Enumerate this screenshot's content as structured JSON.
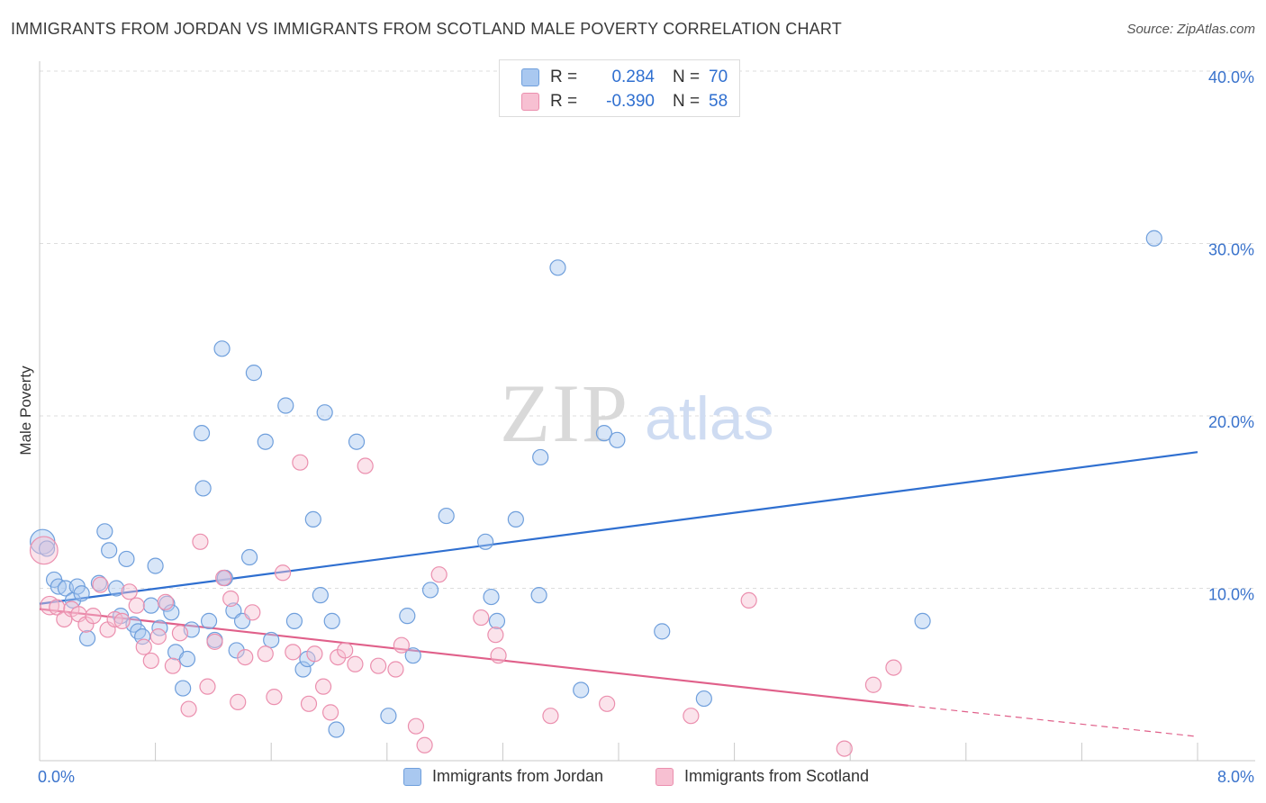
{
  "title": "IMMIGRANTS FROM JORDAN VS IMMIGRANTS FROM SCOTLAND MALE POVERTY CORRELATION CHART",
  "source": "Source: ZipAtlas.com",
  "watermark": {
    "zip": "ZIP",
    "atlas": "atlas"
  },
  "colors": {
    "jordan_fill": "#a9c8f0",
    "jordan_stroke": "#6f9fdc",
    "jordan_line": "#2f6fd0",
    "scotland_fill": "#f7c0d2",
    "scotland_stroke": "#eb8fae",
    "scotland_line": "#e0608a",
    "tick_text": "#3a73cc"
  },
  "stats": {
    "jordan": {
      "r_label": "R =",
      "r_value": "0.284",
      "n_label": "N =",
      "n_value": "70"
    },
    "scotland": {
      "r_label": "R =",
      "r_value": "-0.390",
      "n_label": "N =",
      "n_value": "58"
    }
  },
  "legend": {
    "jordan": "Immigrants from Jordan",
    "scotland": "Immigrants from Scotland"
  },
  "chart_data": {
    "type": "scatter",
    "title": "IMMIGRANTS FROM JORDAN VS IMMIGRANTS FROM SCOTLAND MALE POVERTY CORRELATION CHART",
    "xlabel": "",
    "ylabel": "Male Poverty",
    "xlim": [
      0,
      8
    ],
    "ylim": [
      0,
      40
    ],
    "x_tick_labels": [
      "0.0%",
      "8.0%"
    ],
    "y_ticks": [
      10,
      20,
      30,
      40
    ],
    "y_tick_labels": [
      "10.0%",
      "20.0%",
      "30.0%",
      "40.0%"
    ],
    "grid": true,
    "series": [
      {
        "name": "Immigrants from Jordan",
        "color": "#6f9fdc",
        "points": [
          [
            0.02,
            12.7,
            1.6
          ],
          [
            0.05,
            12.3,
            1
          ],
          [
            0.1,
            10.5,
            1
          ],
          [
            0.13,
            10.1,
            1
          ],
          [
            0.18,
            10.0,
            1
          ],
          [
            0.23,
            9.3,
            1
          ],
          [
            0.26,
            10.1,
            1
          ],
          [
            0.29,
            9.7,
            1
          ],
          [
            0.33,
            7.1,
            1
          ],
          [
            0.41,
            10.3,
            1
          ],
          [
            0.45,
            13.3,
            1
          ],
          [
            0.48,
            12.2,
            1
          ],
          [
            0.53,
            10.0,
            1
          ],
          [
            0.56,
            8.4,
            1
          ],
          [
            0.6,
            11.7,
            1
          ],
          [
            0.65,
            7.9,
            1
          ],
          [
            0.68,
            7.5,
            1
          ],
          [
            0.71,
            7.2,
            1
          ],
          [
            0.77,
            9.0,
            1
          ],
          [
            0.8,
            11.3,
            1
          ],
          [
            0.83,
            7.7,
            1
          ],
          [
            0.88,
            9.1,
            1
          ],
          [
            0.91,
            8.6,
            1
          ],
          [
            0.94,
            6.3,
            1
          ],
          [
            0.99,
            4.2,
            1
          ],
          [
            1.02,
            5.9,
            1
          ],
          [
            1.05,
            7.6,
            1
          ],
          [
            1.12,
            19.0,
            1
          ],
          [
            1.13,
            15.8,
            1
          ],
          [
            1.17,
            8.1,
            1
          ],
          [
            1.21,
            7.0,
            1
          ],
          [
            1.26,
            23.9,
            1
          ],
          [
            1.28,
            10.6,
            1
          ],
          [
            1.34,
            8.7,
            1
          ],
          [
            1.36,
            6.4,
            1
          ],
          [
            1.4,
            8.1,
            1
          ],
          [
            1.45,
            11.8,
            1
          ],
          [
            1.48,
            22.5,
            1
          ],
          [
            1.56,
            18.5,
            1
          ],
          [
            1.6,
            7.0,
            1
          ],
          [
            1.7,
            20.6,
            1
          ],
          [
            1.76,
            8.1,
            1
          ],
          [
            1.82,
            5.3,
            1
          ],
          [
            1.85,
            5.9,
            1
          ],
          [
            1.89,
            14.0,
            1
          ],
          [
            1.94,
            9.6,
            1
          ],
          [
            1.97,
            20.2,
            1
          ],
          [
            2.02,
            8.1,
            1
          ],
          [
            2.05,
            1.8,
            1
          ],
          [
            2.19,
            18.5,
            1
          ],
          [
            2.41,
            2.6,
            1
          ],
          [
            2.54,
            8.4,
            1
          ],
          [
            2.58,
            6.1,
            1
          ],
          [
            2.7,
            9.9,
            1
          ],
          [
            2.81,
            14.2,
            1
          ],
          [
            3.08,
            12.7,
            1
          ],
          [
            3.12,
            9.5,
            1
          ],
          [
            3.16,
            8.1,
            1
          ],
          [
            3.29,
            14.0,
            1
          ],
          [
            3.45,
            9.6,
            1
          ],
          [
            3.46,
            17.6,
            1
          ],
          [
            3.58,
            28.6,
            1
          ],
          [
            3.74,
            4.1,
            1
          ],
          [
            3.9,
            19.0,
            1
          ],
          [
            3.99,
            18.6,
            1
          ],
          [
            4.3,
            7.5,
            1
          ],
          [
            4.59,
            3.6,
            1
          ],
          [
            6.1,
            8.1,
            1
          ],
          [
            7.7,
            30.3,
            1
          ],
          [
            1.28,
            10.6,
            1
          ]
        ]
      },
      {
        "name": "Immigrants from Scotland",
        "color": "#eb8fae",
        "points": [
          [
            0.03,
            12.2,
            1.8
          ],
          [
            0.07,
            9.0,
            1.2
          ],
          [
            0.12,
            8.9,
            1
          ],
          [
            0.17,
            8.2,
            1
          ],
          [
            0.22,
            8.8,
            1
          ],
          [
            0.27,
            8.5,
            1
          ],
          [
            0.32,
            7.9,
            1
          ],
          [
            0.37,
            8.4,
            1
          ],
          [
            0.42,
            10.2,
            1
          ],
          [
            0.47,
            7.6,
            1
          ],
          [
            0.52,
            8.2,
            1
          ],
          [
            0.57,
            8.1,
            1
          ],
          [
            0.62,
            9.8,
            1
          ],
          [
            0.67,
            9.0,
            1
          ],
          [
            0.72,
            6.6,
            1
          ],
          [
            0.77,
            5.8,
            1
          ],
          [
            0.82,
            7.2,
            1
          ],
          [
            0.87,
            9.2,
            1
          ],
          [
            0.92,
            5.5,
            1
          ],
          [
            0.97,
            7.4,
            1
          ],
          [
            1.03,
            3.0,
            1
          ],
          [
            1.11,
            12.7,
            1
          ],
          [
            1.16,
            4.3,
            1
          ],
          [
            1.21,
            6.9,
            1
          ],
          [
            1.27,
            10.6,
            1
          ],
          [
            1.32,
            9.4,
            1
          ],
          [
            1.37,
            3.4,
            1
          ],
          [
            1.42,
            6.0,
            1
          ],
          [
            1.47,
            8.6,
            1
          ],
          [
            1.56,
            6.2,
            1
          ],
          [
            1.62,
            3.7,
            1
          ],
          [
            1.68,
            10.9,
            1
          ],
          [
            1.75,
            6.3,
            1
          ],
          [
            1.8,
            17.3,
            1
          ],
          [
            1.86,
            3.3,
            1
          ],
          [
            1.9,
            6.2,
            1
          ],
          [
            1.96,
            4.3,
            1
          ],
          [
            2.01,
            2.8,
            1
          ],
          [
            2.06,
            6.0,
            1
          ],
          [
            2.11,
            6.4,
            1
          ],
          [
            2.18,
            5.6,
            1
          ],
          [
            2.25,
            17.1,
            1
          ],
          [
            2.34,
            5.5,
            1
          ],
          [
            2.46,
            5.3,
            1
          ],
          [
            2.5,
            6.7,
            1
          ],
          [
            2.6,
            2.0,
            1
          ],
          [
            2.66,
            0.9,
            1
          ],
          [
            2.76,
            10.8,
            1
          ],
          [
            3.05,
            8.3,
            1
          ],
          [
            3.15,
            7.3,
            1
          ],
          [
            3.17,
            6.1,
            1
          ],
          [
            3.53,
            2.6,
            1
          ],
          [
            3.92,
            3.3,
            1
          ],
          [
            4.5,
            2.6,
            1
          ],
          [
            4.9,
            9.3,
            1
          ],
          [
            5.56,
            0.7,
            1
          ],
          [
            5.76,
            4.4,
            1
          ],
          [
            5.9,
            5.4,
            1
          ]
        ]
      }
    ],
    "trendlines": [
      {
        "series": "Immigrants from Jordan",
        "x": [
          0,
          8
        ],
        "y": [
          9.1,
          17.9
        ],
        "style": "solid"
      },
      {
        "series": "Immigrants from Scotland",
        "x": [
          0,
          6
        ],
        "y": [
          8.8,
          3.2
        ],
        "style": "solid"
      },
      {
        "series": "Immigrants from Scotland",
        "x": [
          6,
          8
        ],
        "y": [
          3.2,
          1.4
        ],
        "style": "dashed"
      }
    ]
  }
}
